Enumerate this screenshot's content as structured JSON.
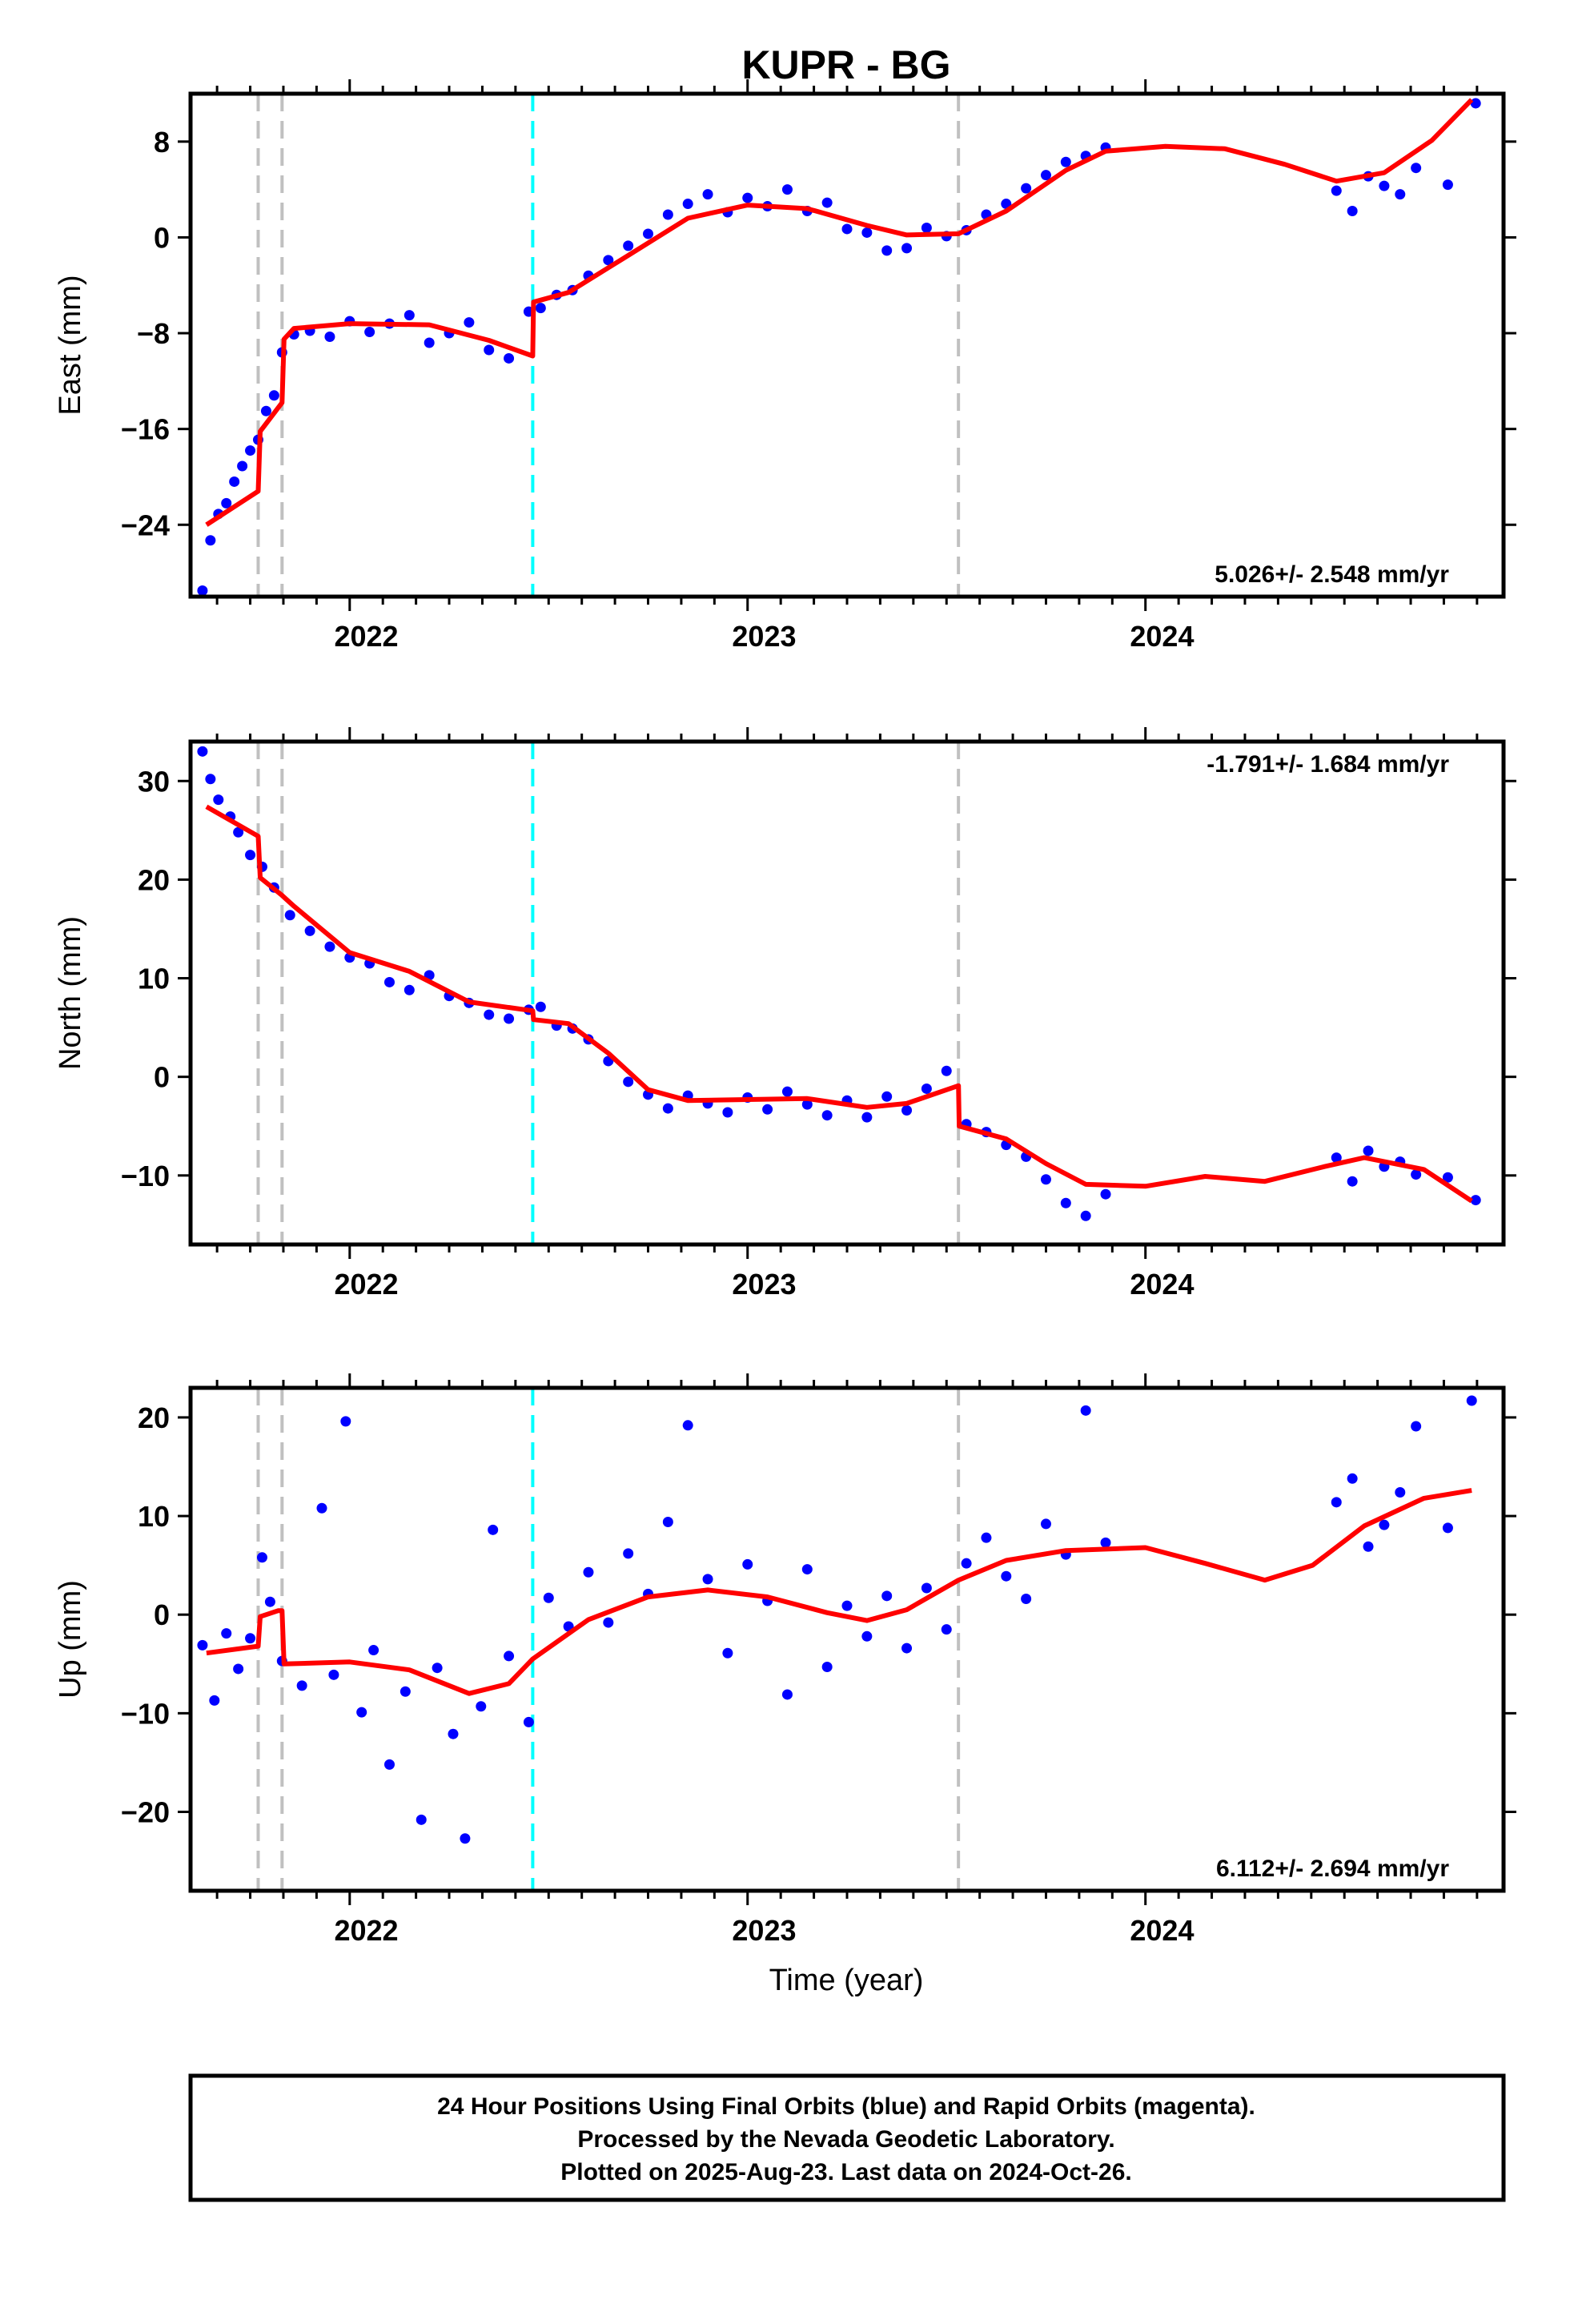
{
  "figure": {
    "title": "KUPR - BG",
    "xlabel": "Time (year)",
    "caption": [
      "24 Hour Positions Using Final Orbits (blue) and Rapid Orbits (magenta).",
      "Processed by the Nevada Geodetic Laboratory.",
      "Plotted on 2025-Aug-23. Last data on 2024-Oct-26."
    ]
  },
  "chart_data": [
    {
      "type": "scatter",
      "ylabel": "East (mm)",
      "rate": "5.026+/- 2.548 mm/yr",
      "rate_position": "bottom-right",
      "xlim": [
        2021.6,
        2024.9
      ],
      "ylim": [
        -30,
        12
      ],
      "yticks": [
        8,
        0,
        -8,
        -16,
        -24
      ],
      "xticks": [
        2022,
        2023,
        2024
      ],
      "colors": {
        "points": "#0000ff",
        "fit": "#ff0000",
        "offset_equipment": "#c0c0c0",
        "offset_earthquake": "#00ffff"
      },
      "offsets_dashed": [
        2021.77,
        2021.83,
        2023.53
      ],
      "offsets_cyan": [
        2022.46
      ],
      "fit_line": [
        [
          2021.64,
          -24.0
        ],
        [
          2021.77,
          -21.2
        ],
        [
          2021.775,
          -16.2
        ],
        [
          2021.83,
          -13.8
        ],
        [
          2021.835,
          -8.5
        ],
        [
          2021.86,
          -7.6
        ],
        [
          2022.0,
          -7.2
        ],
        [
          2022.2,
          -7.3
        ],
        [
          2022.35,
          -8.6
        ],
        [
          2022.46,
          -9.9
        ],
        [
          2022.462,
          -5.4
        ],
        [
          2022.55,
          -4.6
        ],
        [
          2022.7,
          -1.5
        ],
        [
          2022.85,
          1.6
        ],
        [
          2023.0,
          2.7
        ],
        [
          2023.15,
          2.4
        ],
        [
          2023.3,
          1.0
        ],
        [
          2023.4,
          0.2
        ],
        [
          2023.53,
          0.3
        ],
        [
          2023.65,
          2.2
        ],
        [
          2023.8,
          5.6
        ],
        [
          2023.9,
          7.2
        ],
        [
          2024.05,
          7.6
        ],
        [
          2024.2,
          7.4
        ],
        [
          2024.35,
          6.1
        ],
        [
          2024.48,
          4.7
        ],
        [
          2024.6,
          5.4
        ],
        [
          2024.72,
          8.1
        ],
        [
          2024.82,
          11.5
        ]
      ],
      "series": [
        {
          "x": [
            2021.63,
            2021.65,
            2021.67,
            2021.69,
            2021.71,
            2021.73,
            2021.75,
            2021.77,
            2021.79,
            2021.81,
            2021.83,
            2021.86,
            2021.9,
            2021.95,
            2022.0,
            2022.05,
            2022.1,
            2022.15,
            2022.2,
            2022.25,
            2022.3,
            2022.35,
            2022.4,
            2022.45,
            2022.48,
            2022.52,
            2022.56,
            2022.6,
            2022.65,
            2022.7,
            2022.75,
            2022.8,
            2022.85,
            2022.9,
            2022.95,
            2023.0,
            2023.05,
            2023.1,
            2023.15,
            2023.2,
            2023.25,
            2023.3,
            2023.35,
            2023.4,
            2023.45,
            2023.5,
            2023.55,
            2023.6,
            2023.65,
            2023.7,
            2023.75,
            2023.8,
            2023.85,
            2023.9,
            2024.48,
            2024.52,
            2024.56,
            2024.6,
            2024.64,
            2024.68,
            2024.76,
            2024.83
          ],
          "y": [
            -29.5,
            -25.3,
            -23.1,
            -22.2,
            -20.4,
            -19.1,
            -17.8,
            -16.9,
            -14.5,
            -13.2,
            -9.6,
            -8.1,
            -7.8,
            -8.3,
            -7.0,
            -7.9,
            -7.2,
            -6.5,
            -8.8,
            -8.0,
            -7.1,
            -9.4,
            -10.1,
            -6.2,
            -5.9,
            -4.8,
            -4.4,
            -3.2,
            -1.9,
            -0.7,
            0.3,
            1.9,
            2.8,
            3.6,
            2.1,
            3.3,
            2.6,
            4.0,
            2.2,
            2.9,
            0.7,
            0.4,
            -1.1,
            -0.9,
            0.8,
            0.1,
            0.6,
            1.9,
            2.8,
            4.1,
            5.2,
            6.3,
            6.8,
            7.5,
            3.9,
            2.2,
            5.1,
            4.3,
            3.6,
            5.8,
            4.4,
            11.2
          ]
        }
      ]
    },
    {
      "type": "scatter",
      "ylabel": "North (mm)",
      "rate": "-1.791+/- 1.684 mm/yr",
      "rate_position": "top-right",
      "xlim": [
        2021.6,
        2024.9
      ],
      "ylim": [
        -17,
        34
      ],
      "yticks": [
        30,
        20,
        10,
        0,
        -10
      ],
      "xticks": [
        2022,
        2023,
        2024
      ],
      "colors": {
        "points": "#0000ff",
        "fit": "#ff0000",
        "offset_equipment": "#c0c0c0",
        "offset_earthquake": "#00ffff"
      },
      "offsets_dashed": [
        2021.77,
        2021.83,
        2023.53
      ],
      "offsets_cyan": [
        2022.46
      ],
      "fit_line": [
        [
          2021.64,
          27.4
        ],
        [
          2021.77,
          24.4
        ],
        [
          2021.775,
          20.2
        ],
        [
          2021.83,
          18.4
        ],
        [
          2021.86,
          17.3
        ],
        [
          2022.0,
          12.6
        ],
        [
          2022.15,
          10.7
        ],
        [
          2022.3,
          7.6
        ],
        [
          2022.46,
          6.7
        ],
        [
          2022.462,
          5.8
        ],
        [
          2022.55,
          5.4
        ],
        [
          2022.65,
          2.4
        ],
        [
          2022.75,
          -1.3
        ],
        [
          2022.85,
          -2.4
        ],
        [
          2023.0,
          -2.3
        ],
        [
          2023.15,
          -2.2
        ],
        [
          2023.3,
          -3.1
        ],
        [
          2023.4,
          -2.7
        ],
        [
          2023.53,
          -0.9
        ],
        [
          2023.532,
          -5.0
        ],
        [
          2023.65,
          -6.3
        ],
        [
          2023.75,
          -8.8
        ],
        [
          2023.85,
          -10.9
        ],
        [
          2024.0,
          -11.1
        ],
        [
          2024.15,
          -10.1
        ],
        [
          2024.3,
          -10.6
        ],
        [
          2024.45,
          -9.1
        ],
        [
          2024.55,
          -8.2
        ],
        [
          2024.7,
          -9.4
        ],
        [
          2024.82,
          -12.6
        ]
      ],
      "series": [
        {
          "x": [
            2021.63,
            2021.65,
            2021.67,
            2021.7,
            2021.72,
            2021.75,
            2021.78,
            2021.81,
            2021.85,
            2021.9,
            2021.95,
            2022.0,
            2022.05,
            2022.1,
            2022.15,
            2022.2,
            2022.25,
            2022.3,
            2022.35,
            2022.4,
            2022.45,
            2022.48,
            2022.52,
            2022.56,
            2022.6,
            2022.65,
            2022.7,
            2022.75,
            2022.8,
            2022.85,
            2022.9,
            2022.95,
            2023.0,
            2023.05,
            2023.1,
            2023.15,
            2023.2,
            2023.25,
            2023.3,
            2023.35,
            2023.4,
            2023.45,
            2023.5,
            2023.55,
            2023.6,
            2023.65,
            2023.7,
            2023.75,
            2023.8,
            2023.85,
            2023.9,
            2024.48,
            2024.52,
            2024.56,
            2024.6,
            2024.64,
            2024.68,
            2024.76,
            2024.83
          ],
          "y": [
            33.0,
            30.2,
            28.1,
            26.4,
            24.8,
            22.5,
            21.3,
            19.2,
            16.4,
            14.8,
            13.2,
            12.1,
            11.5,
            9.6,
            8.8,
            10.3,
            8.2,
            7.5,
            6.3,
            5.9,
            6.8,
            7.1,
            5.2,
            4.9,
            3.8,
            1.6,
            -0.5,
            -1.8,
            -3.2,
            -1.9,
            -2.7,
            -3.6,
            -2.1,
            -3.3,
            -1.5,
            -2.8,
            -3.9,
            -2.4,
            -4.1,
            -2.0,
            -3.4,
            -1.2,
            0.6,
            -4.8,
            -5.6,
            -6.9,
            -8.1,
            -10.4,
            -12.8,
            -14.1,
            -11.9,
            -8.2,
            -10.6,
            -7.5,
            -9.1,
            -8.6,
            -9.9,
            -10.2,
            -12.5
          ]
        }
      ]
    },
    {
      "type": "scatter",
      "ylabel": "Up (mm)",
      "rate": "6.112+/- 2.694 mm/yr",
      "rate_position": "bottom-right",
      "xlim": [
        2021.6,
        2024.9
      ],
      "ylim": [
        -28,
        23
      ],
      "yticks": [
        20,
        10,
        0,
        -10,
        -20
      ],
      "xticks": [
        2022,
        2023,
        2024
      ],
      "colors": {
        "points": "#0000ff",
        "fit": "#ff0000",
        "offset_equipment": "#c0c0c0",
        "offset_earthquake": "#00ffff"
      },
      "offsets_dashed": [
        2021.77,
        2021.83,
        2023.53
      ],
      "offsets_cyan": [
        2022.46
      ],
      "fit_line": [
        [
          2021.64,
          -3.9
        ],
        [
          2021.77,
          -3.2
        ],
        [
          2021.775,
          -0.2
        ],
        [
          2021.82,
          0.4
        ],
        [
          2021.83,
          0.4
        ],
        [
          2021.835,
          -5.0
        ],
        [
          2022.0,
          -4.8
        ],
        [
          2022.15,
          -5.6
        ],
        [
          2022.3,
          -8.0
        ],
        [
          2022.4,
          -7.0
        ],
        [
          2022.46,
          -4.5
        ],
        [
          2022.6,
          -0.5
        ],
        [
          2022.75,
          1.8
        ],
        [
          2022.9,
          2.5
        ],
        [
          2023.05,
          1.8
        ],
        [
          2023.2,
          0.2
        ],
        [
          2023.3,
          -0.6
        ],
        [
          2023.4,
          0.5
        ],
        [
          2023.53,
          3.5
        ],
        [
          2023.65,
          5.5
        ],
        [
          2023.8,
          6.5
        ],
        [
          2024.0,
          6.8
        ],
        [
          2024.15,
          5.2
        ],
        [
          2024.3,
          3.5
        ],
        [
          2024.42,
          5.0
        ],
        [
          2024.55,
          9.0
        ],
        [
          2024.7,
          11.8
        ],
        [
          2024.82,
          12.6
        ]
      ],
      "series": [
        {
          "x": [
            2021.63,
            2021.66,
            2021.69,
            2021.72,
            2021.75,
            2021.78,
            2021.8,
            2021.83,
            2021.88,
            2021.93,
            2021.96,
            2021.99,
            2022.03,
            2022.06,
            2022.1,
            2022.14,
            2022.18,
            2022.22,
            2022.26,
            2022.29,
            2022.33,
            2022.36,
            2022.4,
            2022.45,
            2022.5,
            2022.55,
            2022.6,
            2022.65,
            2022.7,
            2022.75,
            2022.8,
            2022.85,
            2022.9,
            2022.95,
            2023.0,
            2023.05,
            2023.1,
            2023.15,
            2023.2,
            2023.25,
            2023.3,
            2023.35,
            2023.4,
            2023.45,
            2023.5,
            2023.55,
            2023.6,
            2023.65,
            2023.7,
            2023.75,
            2023.8,
            2023.85,
            2023.9,
            2024.48,
            2024.52,
            2024.56,
            2024.6,
            2024.64,
            2024.68,
            2024.76,
            2024.82
          ],
          "y": [
            -3.1,
            -8.7,
            -1.9,
            -5.5,
            -2.4,
            5.8,
            1.3,
            -4.7,
            -7.2,
            10.8,
            -6.1,
            19.6,
            -9.9,
            -3.6,
            -15.2,
            -7.8,
            -20.8,
            -5.4,
            -12.1,
            -22.7,
            -9.3,
            8.6,
            -4.2,
            -10.9,
            1.7,
            -1.2,
            4.3,
            -0.8,
            6.2,
            2.1,
            9.4,
            19.2,
            3.6,
            -3.9,
            5.1,
            1.4,
            -8.1,
            4.6,
            -5.3,
            0.9,
            -2.2,
            1.9,
            -3.4,
            2.7,
            -1.5,
            5.2,
            7.8,
            3.9,
            1.6,
            9.2,
            6.1,
            20.7,
            7.3,
            11.4,
            13.8,
            6.9,
            9.1,
            12.4,
            19.1,
            8.8,
            21.7
          ]
        }
      ]
    }
  ]
}
